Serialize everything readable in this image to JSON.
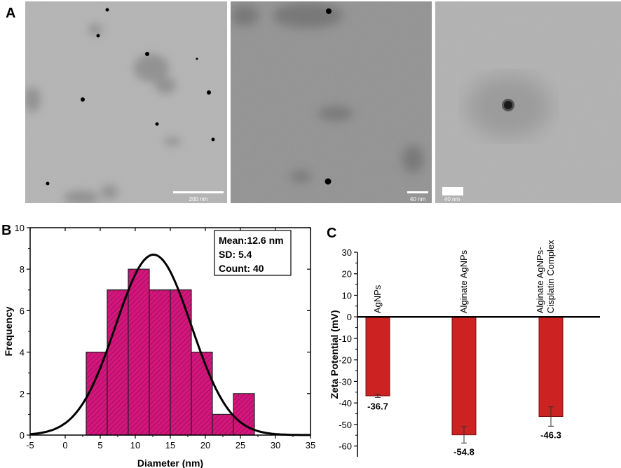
{
  "panel_labels": {
    "a": "A",
    "b": "B",
    "c": "C"
  },
  "tem_images": [
    {
      "scale_label": "200 nm"
    },
    {
      "scale_label": "40 nm"
    },
    {
      "scale_label": "40 nm"
    }
  ],
  "colors": {
    "histogram_fill": "#d4157d",
    "zeta_bar": "#cc2222",
    "fit_curve": "#000000"
  },
  "chart_data": [
    {
      "type": "bar",
      "panel": "B",
      "bins": [
        {
          "from": 3,
          "to": 6,
          "count": 4
        },
        {
          "from": 6,
          "to": 9,
          "count": 7
        },
        {
          "from": 9,
          "to": 12,
          "count": 8
        },
        {
          "from": 12,
          "to": 15,
          "count": 7
        },
        {
          "from": 15,
          "to": 18,
          "count": 7
        },
        {
          "from": 18,
          "to": 21,
          "count": 4
        },
        {
          "from": 21,
          "to": 24,
          "count": 1
        },
        {
          "from": 24,
          "to": 27,
          "count": 2
        }
      ],
      "fit": {
        "mean": 12.6,
        "sd": 5.4,
        "peak": 8.7
      },
      "xlabel": "Diameter (nm)",
      "ylabel": "Frequency",
      "xlim": [
        -5,
        35
      ],
      "ylim": [
        0,
        10
      ],
      "xticks": [
        -5,
        0,
        5,
        10,
        15,
        20,
        25,
        30,
        35
      ],
      "yticks": [
        0,
        2,
        4,
        6,
        8,
        10
      ],
      "legend": [
        "Mean:12.6 nm",
        "SD: 5.4",
        "Count: 40"
      ],
      "legend_position": "top-right",
      "grid": false
    },
    {
      "type": "bar",
      "panel": "C",
      "categories": [
        {
          "lines": [
            "AgNPs"
          ]
        },
        {
          "lines": [
            "Alginate AgNPs"
          ]
        },
        {
          "lines": [
            "Alginate AgNPs-",
            "Cisplatin Complex"
          ]
        }
      ],
      "values": [
        -36.7,
        -54.8,
        -46.3
      ],
      "value_labels": [
        "-36.7",
        "-54.8",
        "-46.3"
      ],
      "errors": [
        0.8,
        3.8,
        4.5
      ],
      "ylabel": "Zeta Potential (mV)",
      "ylim": [
        -65,
        30
      ],
      "yticks": [
        30,
        20,
        10,
        0,
        -10,
        -20,
        -30,
        -40,
        -50,
        -60
      ],
      "grid": false
    }
  ]
}
